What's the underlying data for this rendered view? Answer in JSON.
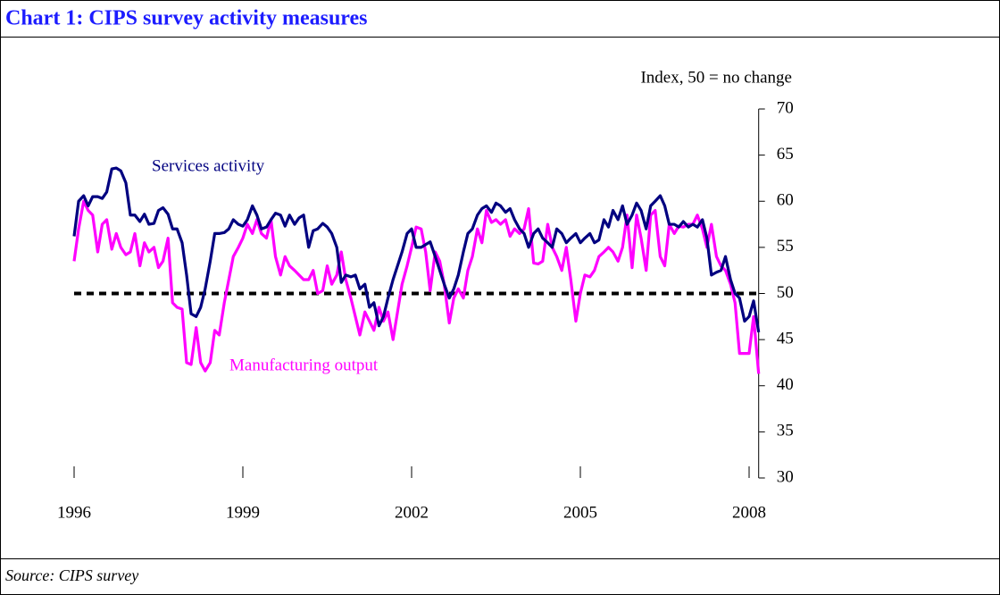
{
  "chart_data": {
    "type": "line",
    "title": "Chart 1: CIPS survey activity measures",
    "y_label": "Index, 50 = no change",
    "source": "Source: CIPS survey",
    "x": [
      1996,
      1996.08,
      1996.17,
      1996.25,
      1996.33,
      1996.42,
      1996.5,
      1996.58,
      1996.67,
      1996.75,
      1996.83,
      1996.92,
      1997,
      1997.08,
      1997.17,
      1997.25,
      1997.33,
      1997.42,
      1997.5,
      1997.58,
      1997.67,
      1997.75,
      1997.83,
      1997.92,
      1998,
      1998.08,
      1998.17,
      1998.25,
      1998.33,
      1998.42,
      1998.5,
      1998.58,
      1998.67,
      1998.75,
      1998.83,
      1998.92,
      1999,
      1999.08,
      1999.17,
      1999.25,
      1999.33,
      1999.42,
      1999.5,
      1999.58,
      1999.67,
      1999.75,
      1999.83,
      1999.92,
      2000,
      2000.08,
      2000.17,
      2000.25,
      2000.33,
      2000.42,
      2000.5,
      2000.58,
      2000.67,
      2000.75,
      2000.83,
      2000.92,
      2001,
      2001.08,
      2001.17,
      2001.25,
      2001.33,
      2001.42,
      2001.5,
      2001.58,
      2001.67,
      2001.75,
      2001.83,
      2001.92,
      2002,
      2002.08,
      2002.17,
      2002.25,
      2002.33,
      2002.42,
      2002.5,
      2002.58,
      2002.67,
      2002.75,
      2002.83,
      2002.92,
      2003,
      2003.08,
      2003.17,
      2003.25,
      2003.33,
      2003.42,
      2003.5,
      2003.58,
      2003.67,
      2003.75,
      2003.83,
      2003.92,
      2004,
      2004.08,
      2004.17,
      2004.25,
      2004.33,
      2004.42,
      2004.5,
      2004.58,
      2004.67,
      2004.75,
      2004.83,
      2004.92,
      2005,
      2005.08,
      2005.17,
      2005.25,
      2005.33,
      2005.42,
      2005.5,
      2005.58,
      2005.67,
      2005.75,
      2005.83,
      2005.92,
      2006,
      2006.08,
      2006.17,
      2006.25,
      2006.33,
      2006.42,
      2006.5,
      2006.58,
      2006.67,
      2006.75,
      2006.83,
      2006.92,
      2007,
      2007.08,
      2007.17,
      2007.25,
      2007.33,
      2007.42,
      2007.5,
      2007.58,
      2007.67,
      2007.75,
      2007.83,
      2007.92,
      2008,
      2008.08,
      2008.17
    ],
    "series": [
      {
        "name": "Services activity",
        "color": "#000080",
        "values": [
          56.2,
          60,
          60.6,
          59.5,
          60.5,
          60.5,
          60.3,
          61,
          63.5,
          63.6,
          63.3,
          62,
          58.5,
          58.5,
          57.8,
          58.6,
          57.5,
          57.6,
          59,
          59.3,
          58.6,
          57,
          57,
          55.5,
          52,
          47.8,
          47.5,
          48.5,
          50.5,
          53.5,
          56.5,
          56.5,
          56.6,
          57,
          58,
          57.5,
          57.3,
          58,
          59.5,
          58.5,
          57,
          57.2,
          58,
          58.7,
          58.5,
          57.3,
          58.5,
          57.5,
          58.2,
          58.5,
          55,
          56.8,
          57,
          57.6,
          57.2,
          56.5,
          55,
          51.2,
          52,
          51.8,
          52,
          50.5,
          51,
          48.5,
          49,
          46.5,
          47.5,
          49.5,
          51.5,
          53,
          54.5,
          56.5,
          57,
          55,
          55,
          55.3,
          55.6,
          54,
          52.5,
          51,
          49.5,
          50.5,
          52,
          54.5,
          56.5,
          57,
          58.5,
          59.2,
          59.5,
          58.8,
          59.8,
          59.5,
          58.8,
          59.2,
          58,
          57,
          56.5,
          55,
          56.5,
          57,
          56,
          55.5,
          55,
          57,
          56.5,
          55.5,
          56,
          56.5,
          55.5,
          56,
          56.5,
          55.5,
          55.8,
          58,
          57.2,
          59,
          58,
          59.5,
          57.5,
          58.5,
          59.8,
          59,
          57,
          59.5,
          60,
          60.6,
          59.5,
          57.5,
          57.5,
          57.2,
          57.8,
          57.2,
          57.5,
          57.2,
          58,
          56,
          52,
          52.3,
          52.5,
          54,
          51.5,
          50,
          49.5,
          47,
          47.5,
          49.2,
          45.8
        ]
      },
      {
        "name": "Manufacturing output",
        "color": "#ff00ff",
        "values": [
          53.5,
          57,
          60,
          59,
          58.5,
          54.5,
          57.5,
          58,
          54.8,
          56.5,
          55,
          54.2,
          54.5,
          56.5,
          53,
          55.5,
          54.5,
          55,
          52.8,
          53.5,
          56,
          49,
          48.5,
          48.3,
          42.5,
          42.3,
          46.3,
          42.5,
          41.6,
          42.5,
          46,
          45.5,
          49,
          51.5,
          54,
          55,
          56,
          57.5,
          56.5,
          58,
          56.5,
          56,
          58,
          54,
          52,
          54,
          53,
          52.5,
          52,
          51.5,
          51.5,
          52.5,
          50,
          50.3,
          53,
          51,
          52,
          54.5,
          51.5,
          49.5,
          47.5,
          45.5,
          48,
          47,
          46,
          48.5,
          47,
          48,
          45,
          48,
          51,
          53,
          55,
          57.2,
          57,
          54.5,
          50.3,
          54.5,
          53.5,
          51,
          46.8,
          49.5,
          50.5,
          49.5,
          52.5,
          54,
          57,
          55.5,
          59,
          57.7,
          58,
          57.5,
          58,
          56.2,
          57,
          56.5,
          57,
          59.2,
          53.3,
          53.2,
          53.5,
          57.5,
          55,
          54,
          52.5,
          55,
          51.5,
          47,
          50,
          52,
          51.8,
          52.5,
          54,
          54.5,
          55,
          54.5,
          53.5,
          55,
          58.5,
          52.8,
          58.5,
          56,
          52.5,
          58.5,
          59,
          54,
          53,
          57.5,
          56.5,
          57.3,
          57.2,
          57.5,
          57.5,
          58.5,
          57,
          55,
          57.5,
          54,
          53,
          52.5,
          51,
          49,
          43.5,
          43.5,
          43.5,
          47.5,
          41.3
        ]
      }
    ],
    "reference_line": 50,
    "xlim": [
      1996,
      2008.17
    ],
    "xticks": [
      1996,
      1999,
      2002,
      2005,
      2008
    ],
    "ylim": [
      30,
      70
    ],
    "yticks": [
      30,
      35,
      40,
      45,
      50,
      55,
      60,
      65,
      70
    ]
  }
}
